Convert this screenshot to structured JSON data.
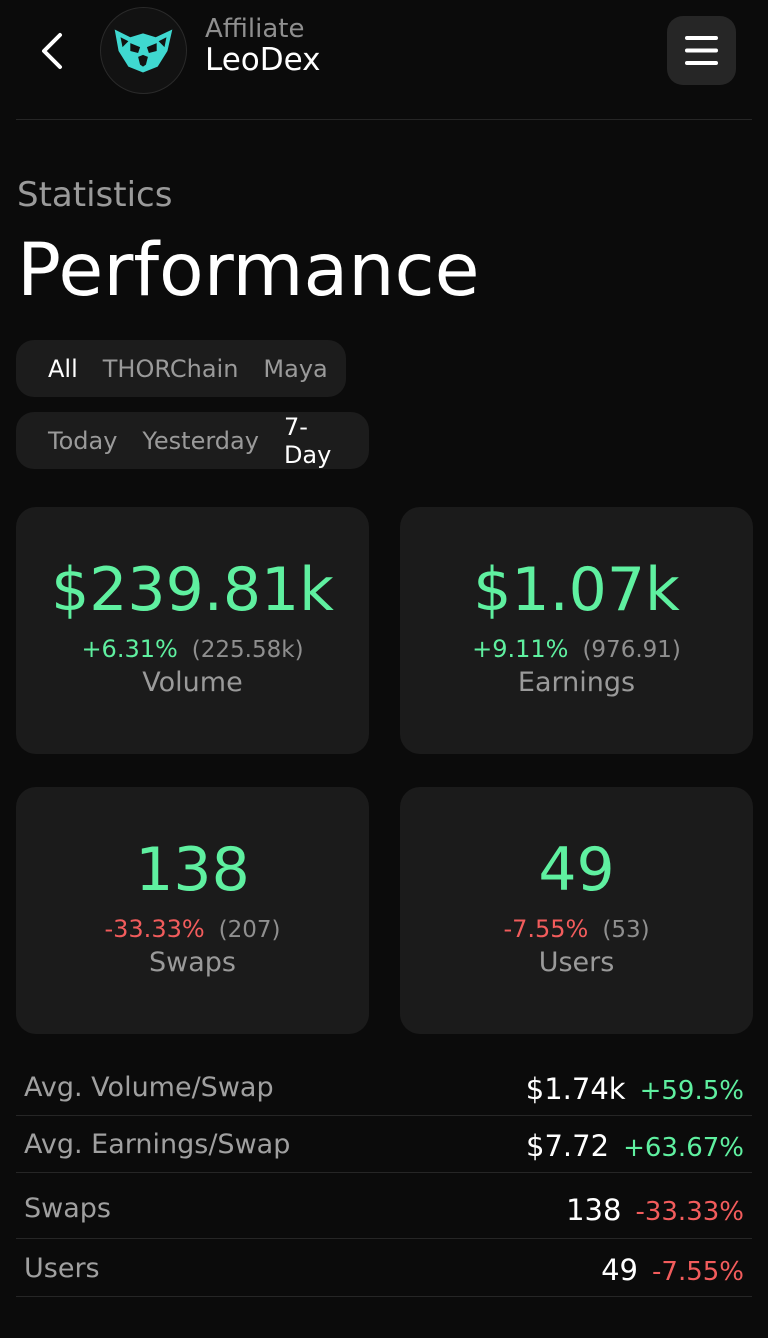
{
  "header": {
    "subtitle": "Affiliate",
    "title": "LeoDex",
    "accent": "#3fd8d0"
  },
  "section_label": "Statistics",
  "page_title": "Performance",
  "chain_filter": {
    "options": [
      "All",
      "THORChain",
      "Maya"
    ],
    "selected": "All"
  },
  "period_filter": {
    "options": [
      "Today",
      "Yesterday",
      "7-Day"
    ],
    "selected": "7-Day"
  },
  "cards": {
    "volume": {
      "value": "$239.81k",
      "change": "+6.31%",
      "previous": "(225.58k)",
      "label": "Volume"
    },
    "earnings": {
      "value": "$1.07k",
      "change": "+9.11%",
      "previous": "(976.91)",
      "label": "Earnings"
    },
    "swaps": {
      "value": "138",
      "change": "-33.33%",
      "previous": "(207)",
      "label": "Swaps"
    },
    "users": {
      "value": "49",
      "change": "-7.55%",
      "previous": "(53)",
      "label": "Users"
    }
  },
  "stats": [
    {
      "label": "Avg. Volume/Swap",
      "value": "$1.74k",
      "change": "+59.5%"
    },
    {
      "label": "Avg. Earnings/Swap",
      "value": "$7.72",
      "change": "+63.67%"
    },
    {
      "label": "Swaps",
      "value": "138",
      "change": "-33.33%"
    },
    {
      "label": "Users",
      "value": "49",
      "change": "-7.55%"
    }
  ],
  "colors": {
    "positive": "#5ff0a0",
    "negative": "#f25c5c",
    "background": "#0b0b0b",
    "card": "#1b1b1b"
  },
  "icons": {
    "back": "chevron-left-icon",
    "menu": "hamburger-menu-icon",
    "logo": "lion-head-logo"
  }
}
